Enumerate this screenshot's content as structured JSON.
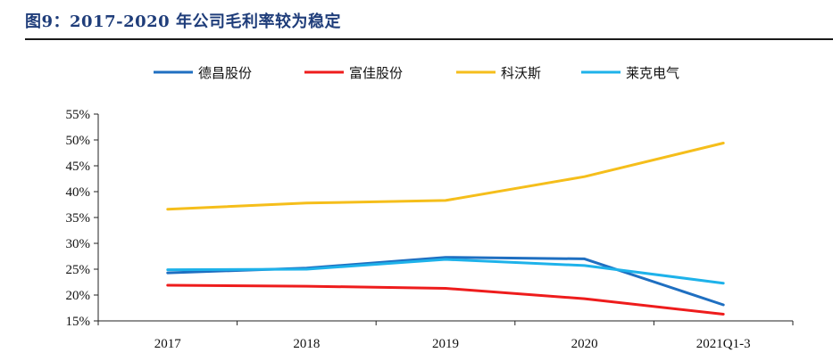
{
  "title": "图9：2017-2020 年公司毛利率较为稳定",
  "chart_data": {
    "type": "line",
    "title": "图9：2017-2020 年公司毛利率较为稳定",
    "xlabel": "",
    "ylabel": "",
    "categories": [
      "2017",
      "2018",
      "2019",
      "2020",
      "2021Q1-3"
    ],
    "ylim": [
      15,
      55
    ],
    "yticks": [
      15,
      20,
      25,
      30,
      35,
      40,
      45,
      50,
      55
    ],
    "ytick_labels": [
      "15%",
      "20%",
      "25%",
      "30%",
      "35%",
      "40%",
      "45%",
      "50%",
      "55%"
    ],
    "grid": false,
    "legend_position": "top",
    "series": [
      {
        "name": "德昌股份",
        "color": "#1f6fc1",
        "values": [
          24.3,
          25.2,
          27.3,
          27.0,
          18.1
        ]
      },
      {
        "name": "富佳股份",
        "color": "#ee1c1c",
        "values": [
          21.9,
          21.7,
          21.3,
          19.3,
          16.3
        ]
      },
      {
        "name": "科沃斯",
        "color": "#f5be1b",
        "values": [
          36.6,
          37.8,
          38.3,
          42.9,
          49.4
        ]
      },
      {
        "name": "莱克电气",
        "color": "#1eb2ea",
        "values": [
          24.9,
          25.0,
          26.9,
          25.7,
          22.3
        ]
      }
    ]
  }
}
